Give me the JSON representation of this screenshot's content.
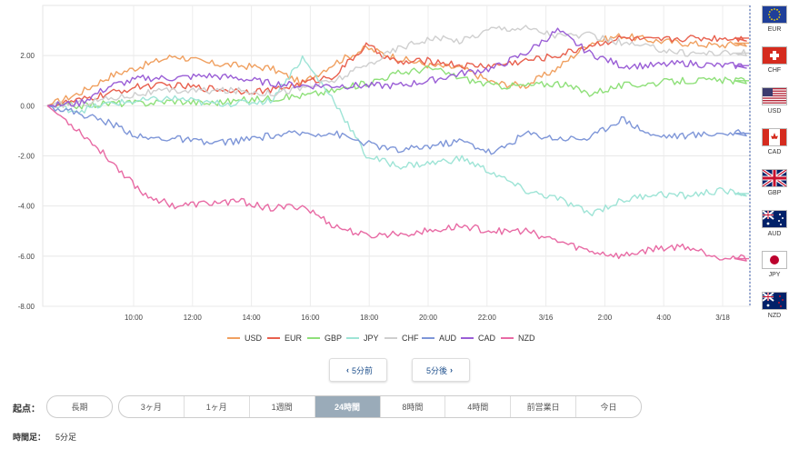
{
  "chart_data": {
    "type": "line",
    "ylim": [
      -8,
      4
    ],
    "yticks": [
      "2.00",
      "0.00",
      "-2.00",
      "-4.00",
      "-6.00",
      "-8.00"
    ],
    "ytick_values": [
      2,
      0,
      -2,
      -4,
      -6,
      -8
    ],
    "x_tick_labels": [
      "10:00",
      "12:00",
      "14:00",
      "16:00",
      "18:00",
      "20:00",
      "22:00",
      "3/16",
      "2:00",
      "4:00",
      "3/18"
    ],
    "x": [
      "8:00",
      "9:00",
      "10:00",
      "11:00",
      "12:00",
      "13:00",
      "14:00",
      "15:00",
      "16:00",
      "17:00",
      "18:00",
      "19:00",
      "20:00",
      "21:00",
      "22:00",
      "23:00",
      "3/16",
      "1:00",
      "2:00",
      "3:00",
      "4:00",
      "5:00",
      "3/18"
    ],
    "grid": true,
    "series": [
      {
        "name": "USD",
        "color": "#f0a060",
        "values": [
          0,
          0.5,
          1.2,
          1.6,
          2.0,
          1.7,
          1.6,
          1.5,
          0.9,
          1.7,
          2.3,
          1.9,
          1.6,
          1.5,
          0.9,
          0.8,
          1.5,
          2.5,
          2.8,
          2.6,
          2.5,
          2.4,
          2.5
        ]
      },
      {
        "name": "EUR",
        "color": "#e8604e",
        "values": [
          0,
          0.2,
          0.5,
          0.8,
          0.8,
          0.7,
          0.6,
          0.6,
          0.9,
          1.2,
          2.4,
          1.7,
          1.8,
          1.6,
          1.6,
          1.8,
          2.0,
          2.4,
          2.7,
          2.6,
          2.7,
          2.7,
          2.7
        ]
      },
      {
        "name": "GBP",
        "color": "#8fe07a",
        "values": [
          0,
          0.0,
          0.1,
          0.1,
          0.2,
          0.1,
          0.2,
          0.3,
          0.4,
          0.6,
          0.9,
          1.3,
          1.5,
          1.1,
          0.8,
          0.8,
          0.9,
          0.5,
          0.8,
          0.9,
          1.0,
          1.0,
          1.0
        ]
      },
      {
        "name": "JPY",
        "color": "#9ee4d6",
        "values": [
          0,
          -0.2,
          0.1,
          0.2,
          0.3,
          0.1,
          0.1,
          0.2,
          1.9,
          0.2,
          -2.0,
          -2.4,
          -2.3,
          -2.1,
          -2.7,
          -3.4,
          -3.7,
          -4.3,
          -3.8,
          -3.5,
          -3.6,
          -3.4,
          -3.5
        ]
      },
      {
        "name": "CHF",
        "color": "#cfcfcf",
        "values": [
          0,
          0.1,
          0.3,
          0.5,
          0.6,
          0.6,
          0.6,
          0.5,
          0.7,
          1.0,
          1.6,
          2.3,
          2.7,
          2.6,
          3.1,
          3.1,
          2.8,
          2.8,
          2.5,
          2.3,
          2.1,
          2.1,
          2.1
        ]
      },
      {
        "name": "AUD",
        "color": "#7e96d8",
        "values": [
          0,
          -0.3,
          -0.7,
          -1.3,
          -1.3,
          -1.5,
          -1.4,
          -1.2,
          -1.1,
          -1.1,
          -1.5,
          -1.8,
          -1.6,
          -1.4,
          -1.9,
          -1.1,
          -1.3,
          -1.3,
          -0.5,
          -1.2,
          -1.2,
          -1.1,
          -1.1
        ]
      },
      {
        "name": "CAD",
        "color": "#9a5ed6",
        "values": [
          0,
          0.1,
          0.8,
          1.1,
          1.1,
          1.2,
          1.1,
          0.9,
          0.8,
          0.8,
          0.8,
          0.8,
          1.0,
          1.3,
          1.5,
          2.1,
          3.0,
          2.1,
          1.6,
          1.6,
          1.7,
          1.6,
          1.6
        ]
      },
      {
        "name": "NZD",
        "color": "#e86aa4",
        "values": [
          0,
          -1.0,
          -2.2,
          -3.5,
          -4.0,
          -3.9,
          -3.8,
          -4.1,
          -4.0,
          -4.8,
          -5.2,
          -5.1,
          -5.0,
          -4.8,
          -5.0,
          -5.0,
          -5.4,
          -5.8,
          -6.0,
          -5.7,
          -5.6,
          -6.0,
          -6.1
        ]
      }
    ]
  },
  "flags": [
    {
      "code": "EUR",
      "icon": "eu-flag-icon"
    },
    {
      "code": "CHF",
      "icon": "swiss-flag-icon"
    },
    {
      "code": "USD",
      "icon": "us-flag-icon"
    },
    {
      "code": "CAD",
      "icon": "canada-flag-icon"
    },
    {
      "code": "GBP",
      "icon": "uk-flag-icon"
    },
    {
      "code": "AUD",
      "icon": "australia-flag-icon"
    },
    {
      "code": "JPY",
      "icon": "japan-flag-icon"
    },
    {
      "code": "NZD",
      "icon": "newzealand-flag-icon"
    }
  ],
  "nav": {
    "prev_label": "5分前",
    "next_label": "5分後"
  },
  "origin": {
    "label": "起点：",
    "long_label": "長期",
    "ranges": [
      "3ヶ月",
      "1ヶ月",
      "1週間",
      "24時間",
      "8時間",
      "4時間",
      "前営業日",
      "今日"
    ],
    "active": "24時間"
  },
  "timeframe": {
    "label": "時間足：",
    "value": "5分足"
  }
}
